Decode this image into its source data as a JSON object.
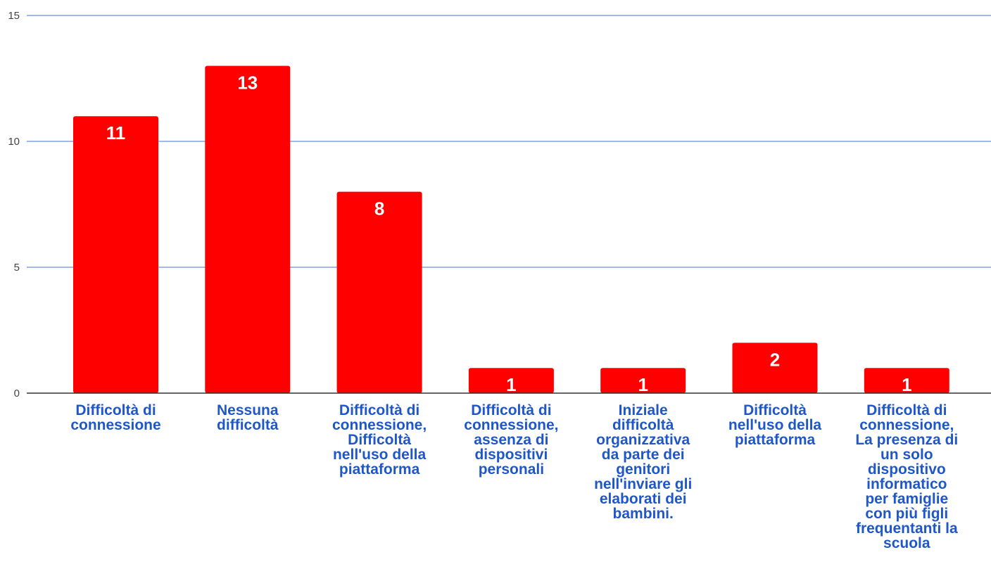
{
  "chart_data": {
    "type": "bar",
    "title": "",
    "xlabel": "",
    "ylabel": "",
    "ylim": [
      0,
      15
    ],
    "yticks": [
      0,
      5,
      10,
      15
    ],
    "grid": true,
    "legend": "none",
    "bar_color": "#ff0000",
    "grid_color": "#3d73d4",
    "label_color": "#1f57c8",
    "categories": [
      [
        "Difficoltà di",
        "connessione"
      ],
      [
        "Nessuna",
        "difficoltà"
      ],
      [
        "Difficoltà di",
        "connessione,",
        "Difficoltà",
        "nell'uso della",
        "piattaforma"
      ],
      [
        "Difficoltà di",
        "connessione,",
        "assenza di",
        "dispositivi",
        "personali"
      ],
      [
        "Iniziale",
        "difficoltà",
        "organizzativa",
        "da  parte dei",
        "genitori",
        "nell'inviare  gli",
        "elaborati dei",
        "bambini."
      ],
      [
        "Difficoltà",
        "nell'uso della",
        "piattaforma"
      ],
      [
        "Difficoltà di",
        "connessione,",
        "La presenza di",
        "un solo",
        "dispositivo",
        "informatico",
        "per famiglie",
        "con più figli",
        "frequentanti la",
        "scuola"
      ]
    ],
    "values": [
      11,
      13,
      8,
      1,
      1,
      2,
      1
    ]
  }
}
